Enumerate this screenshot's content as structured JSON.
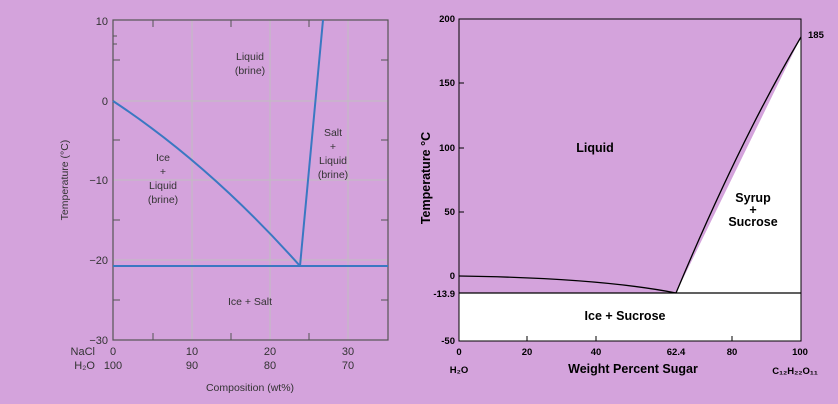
{
  "diagrams": [
    {
      "ylabel": "Temperature (°C)",
      "xlabel": "Composition (wt%)",
      "y_ticks": [
        "10",
        "0",
        "−10",
        "−20",
        "−30"
      ],
      "x_row_labels": [
        "NaCl",
        "H₂O"
      ],
      "x_ticks_nacl": [
        "0",
        "10",
        "20",
        "30"
      ],
      "x_ticks_h2o": [
        "100",
        "90",
        "80",
        "70"
      ],
      "regions": {
        "liquid": [
          "Liquid",
          "(brine)"
        ],
        "ice_liquid": [
          "Ice",
          "+",
          "Liquid",
          "(brine)"
        ],
        "salt_liquid": [
          "Salt",
          "+",
          "Liquid",
          "(brine)"
        ],
        "ice_salt": "Ice + Salt"
      },
      "colors": {
        "lines": "#3a78c2",
        "grid": "#bfbfbf",
        "plot_bg": "#d4a3dc"
      }
    },
    {
      "ylabel": "Temperature °C",
      "xlabel": "Weight Percent Sugar",
      "y_ticks": [
        "200",
        "150",
        "100",
        "50",
        "0",
        "-13.9",
        "-50"
      ],
      "x_ticks": [
        "0",
        "20",
        "40",
        "62.4",
        "80",
        "100"
      ],
      "x_left_label": "H₂O",
      "x_right_label": "C₁₂H₂₂O₁₁",
      "annotation": "185",
      "regions": {
        "liquid": "Liquid",
        "syrup_sucrose": [
          "Syrup",
          "+",
          "Sucrose"
        ],
        "ice_sucrose": "Ice + Sucrose"
      },
      "colors": {
        "lines": "#000000",
        "liquid_fill": "#d4a3dc",
        "solid_fill": "#ffffff"
      }
    }
  ]
}
